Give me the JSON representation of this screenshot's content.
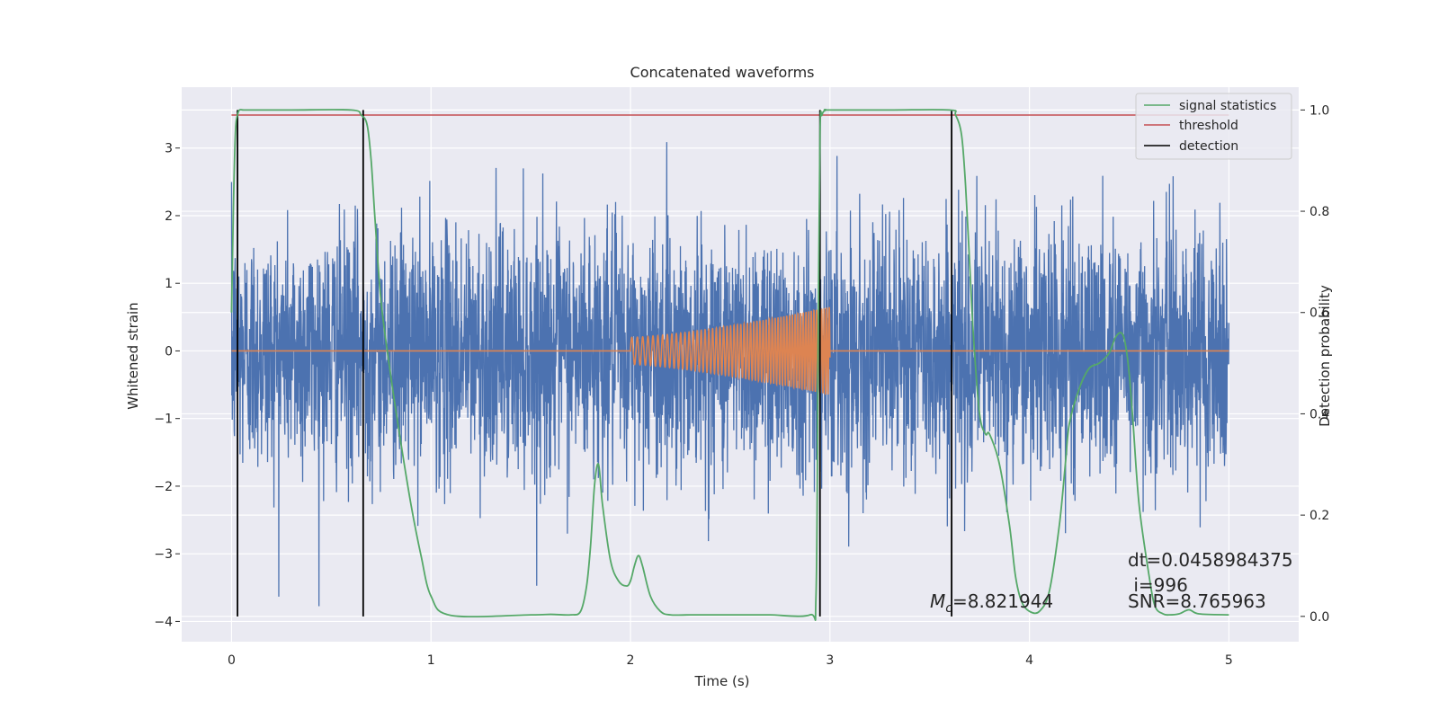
{
  "chart_data": {
    "type": "line",
    "title": "Concatenated waveforms",
    "xlabel": "Time (s)",
    "ylabel": "Whitened strain",
    "ylabel_right": "Detection probability",
    "xlim": [
      -0.25,
      5.35
    ],
    "ylim": [
      -4.3,
      3.9
    ],
    "ylim_right": [
      -0.05,
      1.045
    ],
    "x_ticks": [
      0,
      1,
      2,
      3,
      4,
      5
    ],
    "x_tick_labels": [
      "0",
      "1",
      "2",
      "3",
      "4",
      "5"
    ],
    "y_ticks": [
      -4,
      -3,
      -2,
      -1,
      0,
      1,
      2,
      3
    ],
    "y_tick_labels": [
      "−4",
      "−3",
      "−2",
      "−1",
      "0",
      "1",
      "2",
      "3"
    ],
    "y2_ticks": [
      0.0,
      0.2,
      0.4,
      0.6,
      0.8,
      1.0
    ],
    "y2_tick_labels": [
      "0.0",
      "0.2",
      "0.4",
      "0.6",
      "0.8",
      "1.0"
    ],
    "grid": true,
    "legend_position": "top-right",
    "legend": [
      "signal statistics",
      "threshold",
      "detection"
    ],
    "colors": {
      "strain": "#4c72b0",
      "waveform": "#dd8452",
      "signal_statistics": "#55a868",
      "threshold": "#c44e52",
      "detection": "#000000",
      "background": "#eaeaf2",
      "grid": "#ffffff"
    },
    "strain": {
      "x_start": 0,
      "x_end": 5,
      "noise_std": 0.9,
      "peak_max": 3.5,
      "peak_min": -3.9
    },
    "waveform": {
      "x_start": 2.0,
      "x_end": 3.0,
      "amp_start": 0.2,
      "amp_end": 0.65,
      "freq_start": 35,
      "freq_end": 80
    },
    "signal_statistics": {
      "x": [
        0,
        0.01,
        0.02,
        0.03,
        0.04,
        0.06,
        0.1,
        0.3,
        0.6,
        0.65,
        0.68,
        0.7,
        0.72,
        0.75,
        0.8,
        0.85,
        0.9,
        0.95,
        1.0,
        1.1,
        1.5,
        1.6,
        1.7,
        1.75,
        1.78,
        1.8,
        1.82,
        1.84,
        1.86,
        1.9,
        1.94,
        1.98,
        2.0,
        2.02,
        2.04,
        2.06,
        2.1,
        2.15,
        2.2,
        2.3,
        2.6,
        2.7,
        2.9,
        2.93,
        2.94,
        2.95,
        2.96,
        2.98,
        3.0,
        3.3,
        3.6,
        3.63,
        3.66,
        3.68,
        3.7,
        3.72,
        3.75,
        3.78,
        3.8,
        3.85,
        3.9,
        3.93,
        3.96,
        4.0,
        4.05,
        4.1,
        4.15,
        4.18,
        4.2,
        4.25,
        4.3,
        4.35,
        4.4,
        4.43,
        4.46,
        4.48,
        4.5,
        4.52,
        4.55,
        4.6,
        4.63,
        4.67,
        4.7,
        4.75,
        4.8,
        4.85,
        5.0
      ],
      "y": [
        0.6,
        0.82,
        0.96,
        0.99,
        1.0,
        1.0,
        1.0,
        1.0,
        1.0,
        0.99,
        0.97,
        0.9,
        0.78,
        0.62,
        0.47,
        0.34,
        0.22,
        0.12,
        0.04,
        0.002,
        0.003,
        0.004,
        0.003,
        0.01,
        0.06,
        0.14,
        0.26,
        0.3,
        0.22,
        0.11,
        0.07,
        0.06,
        0.07,
        0.1,
        0.12,
        0.1,
        0.04,
        0.01,
        0.003,
        0.003,
        0.003,
        0.003,
        0.003,
        0.04,
        0.5,
        0.95,
        0.99,
        1.0,
        1.0,
        1.0,
        1.0,
        0.99,
        0.95,
        0.85,
        0.7,
        0.55,
        0.4,
        0.36,
        0.36,
        0.3,
        0.18,
        0.08,
        0.03,
        0.01,
        0.01,
        0.05,
        0.18,
        0.3,
        0.38,
        0.45,
        0.49,
        0.5,
        0.52,
        0.55,
        0.56,
        0.54,
        0.48,
        0.38,
        0.22,
        0.08,
        0.02,
        0.005,
        0.003,
        0.005,
        0.013,
        0.005,
        0.003
      ]
    },
    "threshold": 0.99,
    "detections": [
      0.03,
      0.66,
      2.95,
      3.61
    ],
    "annotations": {
      "mc_symbol": "M",
      "mc_subscript": "c",
      "mc_value": "=8.821944",
      "dt": "dt=0.0458984375",
      "i": " i=996",
      "snr": "SNR=8.765963"
    }
  }
}
